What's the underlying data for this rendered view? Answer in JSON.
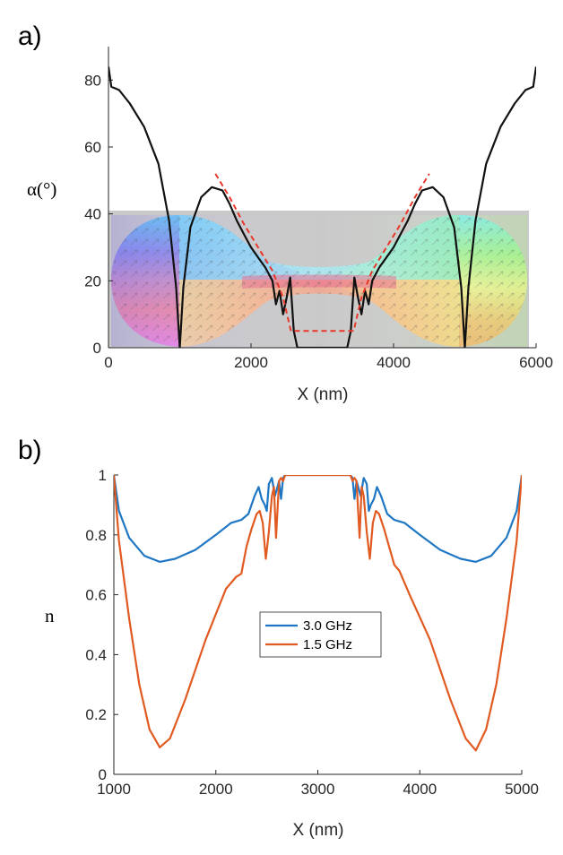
{
  "chart_data": [
    {
      "panel_label": "a)",
      "type": "line",
      "xlabel": "X (nm)",
      "ylabel": "α(°)",
      "xlim": [
        0,
        6000
      ],
      "ylim": [
        0,
        90
      ],
      "xticks": [
        "0",
        "2000",
        "4000",
        "6000"
      ],
      "yticks": [
        "0",
        "20",
        "40",
        "60",
        "80"
      ],
      "inset": "magnetization texture map (skyrmion-like profile) on grey background spanning y 0–41",
      "series": [
        {
          "name": "alpha",
          "color": "#111111",
          "style": "solid",
          "x": [
            0,
            40,
            150,
            300,
            500,
            700,
            850,
            950,
            1000,
            1050,
            1150,
            1300,
            1450,
            1600,
            1700,
            1800,
            1900,
            2000,
            2100,
            2200,
            2300,
            2350,
            2400,
            2450,
            2500,
            2550,
            2600,
            2650,
            2700,
            3300,
            3350,
            3400,
            3450,
            3500,
            3550,
            3600,
            3650,
            3700,
            3800,
            3900,
            4000,
            4100,
            4200,
            4300,
            4400,
            4550,
            4700,
            4850,
            4950,
            5000,
            5050,
            5150,
            5300,
            5500,
            5700,
            5850,
            5960,
            6000
          ],
          "y": [
            84,
            78,
            77,
            73,
            66,
            55,
            38,
            18,
            0,
            18,
            36,
            45,
            48,
            47,
            43,
            38,
            34,
            30,
            27,
            24,
            20,
            13,
            17,
            10,
            15,
            21,
            5,
            0,
            0,
            0,
            0,
            5,
            21,
            15,
            10,
            17,
            13,
            20,
            24,
            27,
            30,
            34,
            38,
            43,
            47,
            48,
            45,
            36,
            18,
            0,
            18,
            38,
            55,
            66,
            73,
            77,
            78,
            84
          ]
        },
        {
          "name": "fit",
          "color": "#e8382a",
          "style": "dashed",
          "x": [
            1500,
            1700,
            1900,
            2100,
            2300,
            2450,
            2560,
            3440,
            3550,
            3700,
            3900,
            4100,
            4300,
            4500
          ],
          "y": [
            52,
            45,
            37,
            30,
            23,
            15,
            5,
            5,
            15,
            23,
            30,
            37,
            45,
            52
          ]
        }
      ]
    },
    {
      "panel_label": "b)",
      "type": "line",
      "xlabel": "X (nm)",
      "ylabel": "n",
      "xlim": [
        1000,
        5000
      ],
      "ylim": [
        0,
        1
      ],
      "xticks": [
        "1000",
        "2000",
        "3000",
        "4000",
        "5000"
      ],
      "yticks": [
        "0",
        "0.2",
        "0.4",
        "0.6",
        "0.8",
        "1"
      ],
      "legend": {
        "position": "center",
        "entries": [
          "3.0 GHz",
          "1.5 GHz"
        ]
      },
      "series": [
        {
          "name": "3.0 GHz",
          "color": "#1f77c4",
          "x": [
            1000,
            1050,
            1150,
            1300,
            1450,
            1600,
            1800,
            2000,
            2150,
            2250,
            2320,
            2380,
            2420,
            2450,
            2480,
            2500,
            2520,
            2550,
            2580,
            2620,
            2640,
            2660,
            2680,
            2700,
            3300,
            3320,
            3340,
            3360,
            3380,
            3420,
            3450,
            3480,
            3500,
            3520,
            3550,
            3580,
            3620,
            3680,
            3750,
            3850,
            4000,
            4200,
            4400,
            4550,
            4700,
            4850,
            4950,
            5000
          ],
          "y": [
            1.0,
            0.88,
            0.79,
            0.73,
            0.71,
            0.72,
            0.75,
            0.8,
            0.84,
            0.85,
            0.87,
            0.93,
            0.96,
            0.92,
            0.9,
            0.88,
            0.97,
            0.99,
            0.93,
            0.98,
            0.92,
            0.99,
            1.0,
            1.0,
            1.0,
            1.0,
            0.99,
            0.92,
            0.98,
            0.93,
            0.99,
            0.97,
            0.88,
            0.9,
            0.92,
            0.96,
            0.93,
            0.87,
            0.85,
            0.84,
            0.8,
            0.75,
            0.72,
            0.71,
            0.73,
            0.79,
            0.88,
            1.0
          ]
        },
        {
          "name": "1.5 GHz",
          "color": "#e05a21",
          "x": [
            1000,
            1050,
            1150,
            1250,
            1350,
            1450,
            1550,
            1700,
            1900,
            2100,
            2200,
            2250,
            2300,
            2350,
            2400,
            2430,
            2460,
            2490,
            2520,
            2550,
            2570,
            2590,
            2620,
            2640,
            2660,
            2680,
            2700,
            3300,
            3320,
            3340,
            3360,
            3380,
            3410,
            3430,
            3450,
            3480,
            3510,
            3540,
            3570,
            3600,
            3650,
            3700,
            3750,
            3800,
            3900,
            4100,
            4300,
            4450,
            4550,
            4650,
            4750,
            4850,
            4950,
            5000
          ],
          "y": [
            1.0,
            0.78,
            0.52,
            0.3,
            0.15,
            0.09,
            0.12,
            0.25,
            0.45,
            0.62,
            0.66,
            0.67,
            0.76,
            0.82,
            0.87,
            0.88,
            0.84,
            0.72,
            0.81,
            0.93,
            0.96,
            0.79,
            0.98,
            0.99,
            0.98,
            1.0,
            1.0,
            1.0,
            1.0,
            0.98,
            0.99,
            0.98,
            0.79,
            0.96,
            0.93,
            0.81,
            0.72,
            0.84,
            0.88,
            0.87,
            0.82,
            0.76,
            0.7,
            0.68,
            0.6,
            0.45,
            0.25,
            0.12,
            0.08,
            0.15,
            0.3,
            0.52,
            0.78,
            1.0
          ]
        }
      ]
    }
  ]
}
